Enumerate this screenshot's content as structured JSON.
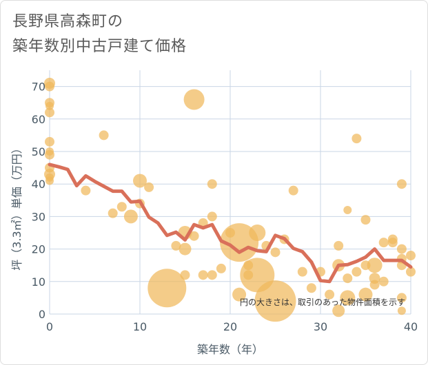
{
  "title_lines": [
    "長野県高森町の",
    "築年数別中古戸建て価格"
  ],
  "chart_data": {
    "type": "scatter",
    "xlabel": "築年数（年）",
    "ylabel": "坪（3.3㎡）単価（万円）",
    "annotation": "円の大きさは、取引のあった物件面積を示す",
    "xlim": [
      0,
      40
    ],
    "ylim": [
      0,
      75
    ],
    "xticks": [
      0,
      10,
      20,
      30,
      40
    ],
    "yticks": [
      0,
      10,
      20,
      30,
      40,
      50,
      60,
      70
    ],
    "grid": true,
    "colors": {
      "bubble": "#f0b85c",
      "line": "#d9705a",
      "grid": "#c9d6e6",
      "axis_text": "#4a5a66"
    },
    "points": [
      {
        "x": 0,
        "y": 71,
        "r": 8
      },
      {
        "x": 0,
        "y": 70,
        "r": 7
      },
      {
        "x": 0,
        "y": 65,
        "r": 7
      },
      {
        "x": 0,
        "y": 64,
        "r": 6
      },
      {
        "x": 0,
        "y": 62,
        "r": 7
      },
      {
        "x": 0,
        "y": 53,
        "r": 7
      },
      {
        "x": 0,
        "y": 50,
        "r": 6
      },
      {
        "x": 0,
        "y": 49,
        "r": 7
      },
      {
        "x": 0,
        "y": 45,
        "r": 7
      },
      {
        "x": 0,
        "y": 43,
        "r": 8
      },
      {
        "x": 0,
        "y": 42,
        "r": 6
      },
      {
        "x": 0,
        "y": 41,
        "r": 6
      },
      {
        "x": 4,
        "y": 38,
        "r": 7
      },
      {
        "x": 6,
        "y": 55,
        "r": 7
      },
      {
        "x": 7,
        "y": 31,
        "r": 7
      },
      {
        "x": 8,
        "y": 33,
        "r": 7
      },
      {
        "x": 9,
        "y": 30,
        "r": 10
      },
      {
        "x": 10,
        "y": 41,
        "r": 10
      },
      {
        "x": 10,
        "y": 34,
        "r": 7
      },
      {
        "x": 11,
        "y": 39,
        "r": 7
      },
      {
        "x": 13,
        "y": 8,
        "r": 28
      },
      {
        "x": 14,
        "y": 21,
        "r": 7
      },
      {
        "x": 15,
        "y": 25,
        "r": 10
      },
      {
        "x": 15,
        "y": 20,
        "r": 9
      },
      {
        "x": 15,
        "y": 12,
        "r": 7
      },
      {
        "x": 16,
        "y": 66,
        "r": 15
      },
      {
        "x": 16,
        "y": 24,
        "r": 7
      },
      {
        "x": 17,
        "y": 28,
        "r": 7
      },
      {
        "x": 17,
        "y": 12,
        "r": 7
      },
      {
        "x": 18,
        "y": 40,
        "r": 7
      },
      {
        "x": 18,
        "y": 30,
        "r": 7
      },
      {
        "x": 18,
        "y": 12,
        "r": 7
      },
      {
        "x": 19,
        "y": 14,
        "r": 7
      },
      {
        "x": 20,
        "y": 25,
        "r": 7
      },
      {
        "x": 21,
        "y": 22,
        "r": 28
      },
      {
        "x": 21,
        "y": 6,
        "r": 10
      },
      {
        "x": 22,
        "y": 15,
        "r": 7
      },
      {
        "x": 22,
        "y": 12,
        "r": 7
      },
      {
        "x": 23,
        "y": 25,
        "r": 12
      },
      {
        "x": 23,
        "y": 12,
        "r": 25
      },
      {
        "x": 24,
        "y": 21,
        "r": 7
      },
      {
        "x": 25,
        "y": 19,
        "r": 7
      },
      {
        "x": 25,
        "y": 4,
        "r": 30
      },
      {
        "x": 26,
        "y": 23,
        "r": 7
      },
      {
        "x": 27,
        "y": 38,
        "r": 7
      },
      {
        "x": 28,
        "y": 13,
        "r": 7
      },
      {
        "x": 29,
        "y": 8,
        "r": 7
      },
      {
        "x": 30,
        "y": 13,
        "r": 7
      },
      {
        "x": 31,
        "y": 6,
        "r": 7
      },
      {
        "x": 32,
        "y": 21,
        "r": 7
      },
      {
        "x": 32,
        "y": 15,
        "r": 9
      },
      {
        "x": 32,
        "y": 1,
        "r": 9
      },
      {
        "x": 33,
        "y": 32,
        "r": 6
      },
      {
        "x": 33,
        "y": 11,
        "r": 7
      },
      {
        "x": 33,
        "y": 5,
        "r": 11
      },
      {
        "x": 34,
        "y": 54,
        "r": 7
      },
      {
        "x": 34,
        "y": 13,
        "r": 7
      },
      {
        "x": 35,
        "y": 29,
        "r": 7
      },
      {
        "x": 35,
        "y": 15,
        "r": 7
      },
      {
        "x": 35,
        "y": 6,
        "r": 10
      },
      {
        "x": 36,
        "y": 15,
        "r": 11
      },
      {
        "x": 36,
        "y": 11,
        "r": 8
      },
      {
        "x": 36,
        "y": 9,
        "r": 7
      },
      {
        "x": 37,
        "y": 22,
        "r": 7
      },
      {
        "x": 37,
        "y": 10,
        "r": 7
      },
      {
        "x": 38,
        "y": 23,
        "r": 7
      },
      {
        "x": 38,
        "y": 22,
        "r": 7
      },
      {
        "x": 39,
        "y": 40,
        "r": 7
      },
      {
        "x": 39,
        "y": 20,
        "r": 7
      },
      {
        "x": 39,
        "y": 17,
        "r": 7
      },
      {
        "x": 39,
        "y": 15,
        "r": 7
      },
      {
        "x": 39,
        "y": 5,
        "r": 7
      },
      {
        "x": 39,
        "y": 1,
        "r": 6
      },
      {
        "x": 40,
        "y": 18,
        "r": 7
      },
      {
        "x": 40,
        "y": 13,
        "r": 7
      }
    ],
    "series": [
      {
        "x": [
          0,
          1,
          2,
          3,
          4,
          5,
          6,
          7,
          8,
          9,
          10,
          11,
          12,
          13,
          14,
          15,
          16,
          17,
          18,
          19,
          20,
          21,
          22,
          23,
          24,
          25,
          26,
          27,
          28,
          29,
          30,
          31,
          32,
          33,
          34,
          35,
          36,
          37,
          38,
          39,
          40
        ],
        "values": [
          46,
          45.3,
          44.5,
          39.5,
          42.5,
          40.8,
          39.3,
          37.8,
          37.8,
          34.5,
          34.7,
          29.8,
          28,
          24.2,
          25.2,
          22.8,
          27.5,
          26.5,
          27.5,
          22.5,
          21.2,
          19,
          20.5,
          19.5,
          19.2,
          24.2,
          23.2,
          20.2,
          19.2,
          16,
          10.3,
          10,
          15,
          15.2,
          16.2,
          17.5,
          20,
          16.5,
          16.5,
          16.5,
          14.5
        ]
      }
    ]
  }
}
